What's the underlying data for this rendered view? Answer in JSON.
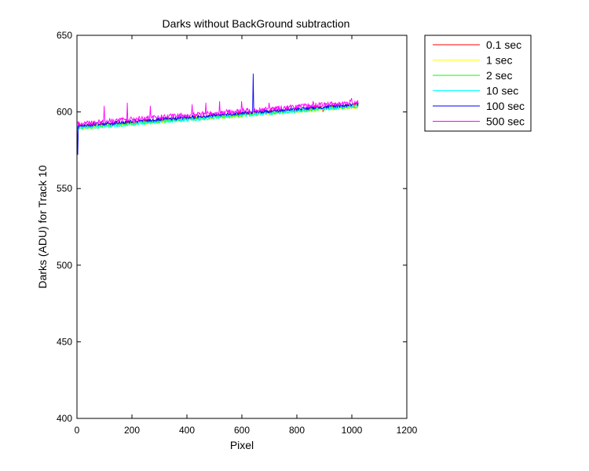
{
  "chart_data": {
    "type": "line",
    "title": "Darks without BackGround subtraction",
    "xlabel": "Pixel",
    "ylabel": "Darks (ADU) for Track 10",
    "xlim": [
      0,
      1200
    ],
    "ylim": [
      400,
      650
    ],
    "xticks": [
      0,
      200,
      400,
      600,
      800,
      1000,
      1200
    ],
    "yticks": [
      400,
      450,
      500,
      550,
      600,
      650
    ],
    "grid": false,
    "legend_position": "outside-top-right",
    "x_range": [
      1,
      1024
    ],
    "series": [
      {
        "name": "0.1 sec",
        "color": "#ff0000",
        "start": 590.5,
        "end": 604.5,
        "noise": 1.2,
        "spikes": [
          [
            896,
            600
          ]
        ]
      },
      {
        "name": "1 sec",
        "color": "#ffff00",
        "start": 589.5,
        "end": 603.5,
        "noise": 1.2,
        "spikes": []
      },
      {
        "name": "2 sec",
        "color": "#00ff00",
        "start": 589.8,
        "end": 603.8,
        "noise": 1.2,
        "spikes": []
      },
      {
        "name": "10 sec",
        "color": "#00ffff",
        "start": 589.2,
        "end": 604.0,
        "noise": 1.3,
        "spikes": []
      },
      {
        "name": "100 sec",
        "color": "#0000ff",
        "start": 591.0,
        "end": 605.0,
        "noise": 1.2,
        "spikes": [
          [
            3,
            572
          ],
          [
            641,
            625
          ]
        ]
      },
      {
        "name": "500 sec",
        "color": "#ff00ff",
        "start": 592.5,
        "end": 606.5,
        "noise": 1.6,
        "spikes": [
          [
            100,
            604
          ],
          [
            183,
            606
          ],
          [
            268,
            604
          ],
          [
            420,
            605
          ],
          [
            470,
            606
          ],
          [
            520,
            607
          ],
          [
            600,
            607
          ],
          [
            700,
            606
          ],
          [
            860,
            607
          ],
          [
            1000,
            609
          ]
        ]
      }
    ]
  }
}
